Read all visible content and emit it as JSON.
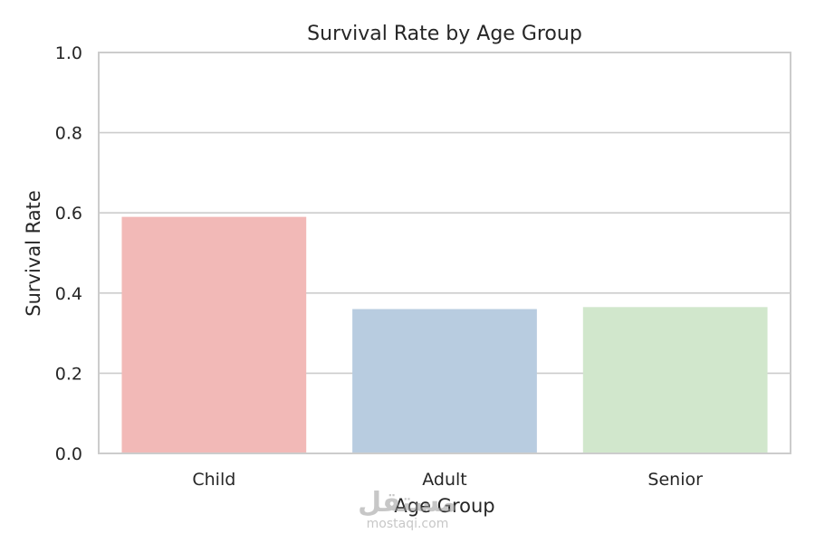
{
  "chart_data": {
    "type": "bar",
    "title": "Survival Rate by Age Group",
    "xlabel": "Age Group",
    "ylabel": "Survival Rate",
    "categories": [
      "Child",
      "Adult",
      "Senior"
    ],
    "values": [
      0.59,
      0.36,
      0.365
    ],
    "colors": [
      "#f2b9b7",
      "#b8cce0",
      "#d1e7cc"
    ],
    "ylim": [
      0,
      1.0
    ],
    "yticks": [
      "0.0",
      "0.2",
      "0.4",
      "0.6",
      "0.8",
      "1.0"
    ],
    "grid": true
  },
  "watermark": {
    "arabic": "مستقل",
    "site": "mostaqi.com"
  }
}
